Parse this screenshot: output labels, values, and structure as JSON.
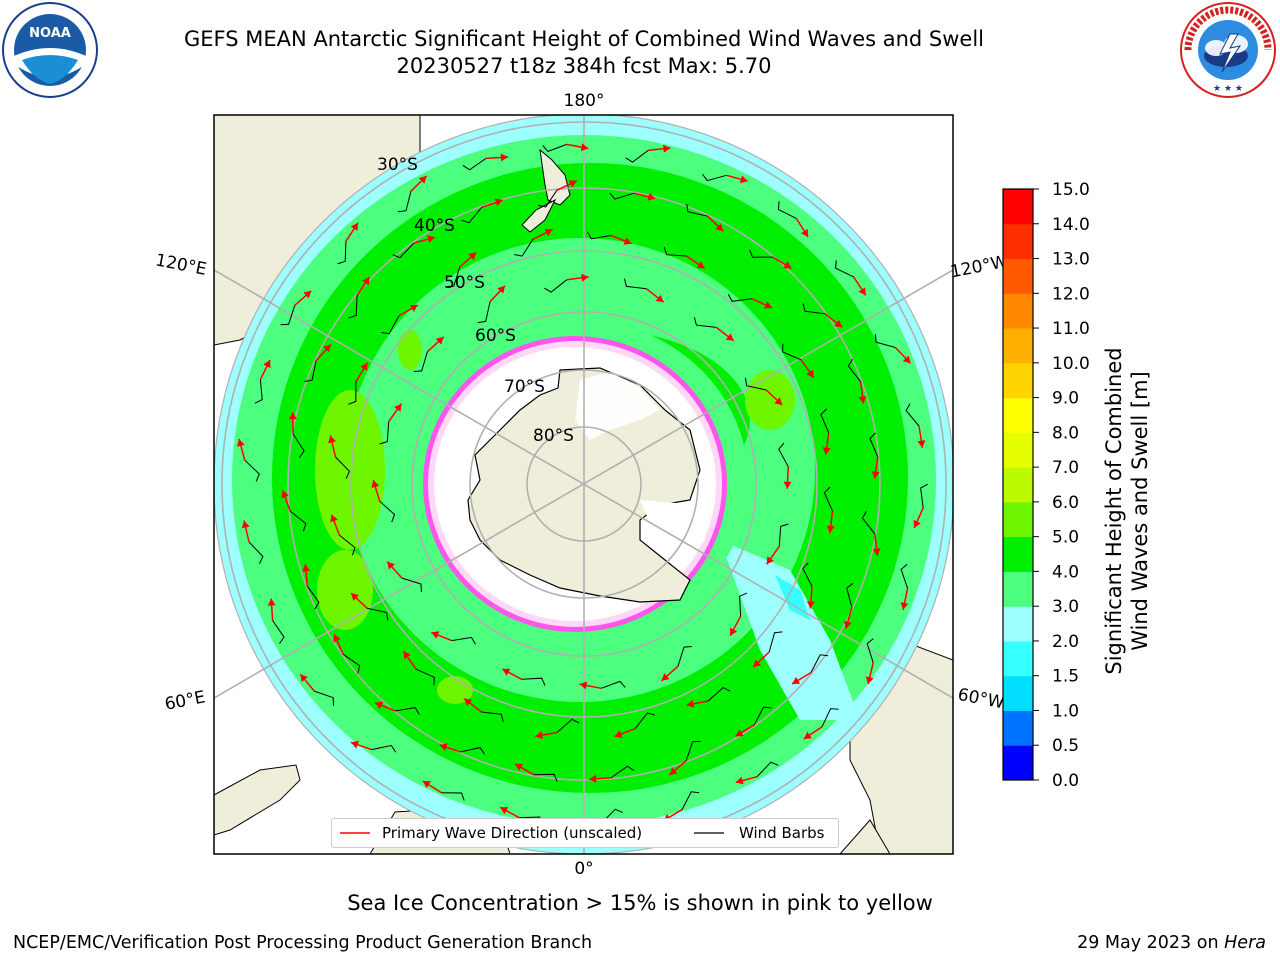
{
  "header": {
    "title_line1": "GEFS MEAN Antarctic Significant Height of Combined Wind Waves and Swell",
    "title_line2": "20230527 t18z 384h fcst   Max: 5.70"
  },
  "logos": {
    "left": "NOAA",
    "left_ring_text": "NATIONAL OCEANIC AND ATMOSPHERIC ADMINISTRATION · U.S. DEPARTMENT OF COMMERCE",
    "right_ring_text": "NATIONAL WEATHER SERVICE"
  },
  "map": {
    "longitude_labels": {
      "top": "180°",
      "bottom": "0°",
      "left_upper": "120°E",
      "left_lower": "60°E",
      "right_upper": "120°W",
      "right_lower": "60°W"
    },
    "latitude_labels": [
      "30°S",
      "40°S",
      "50°S",
      "60°S",
      "70°S",
      "80°S"
    ],
    "legend": {
      "primary_wave": "Primary Wave Direction (unscaled)",
      "wind_barbs": "Wind Barbs"
    }
  },
  "colorbar": {
    "label_line1": "Significant Height of Combined",
    "label_line2": "Wind Waves and Swell [m]",
    "ticks": [
      "0.0",
      "0.5",
      "1.0",
      "1.5",
      "2.0",
      "3.0",
      "4.0",
      "5.0",
      "6.0",
      "7.0",
      "8.0",
      "9.0",
      "10.0",
      "11.0",
      "12.0",
      "13.0",
      "14.0",
      "15.0"
    ],
    "colors": [
      "#0000ff",
      "#0073ff",
      "#00ddff",
      "#36ffff",
      "#9effff",
      "#4dff7f",
      "#00ee00",
      "#6ef500",
      "#bbfa00",
      "#e6ff00",
      "#ffff00",
      "#ffd400",
      "#ffb000",
      "#ff8800",
      "#ff5a00",
      "#ff2e00",
      "#ff0000"
    ]
  },
  "notes": {
    "sea_ice": "Sea Ice Concentration > 15% is shown in pink to yellow"
  },
  "footer": {
    "left": "NCEP/EMC/Verification Post Processing Product Generation Branch",
    "right_date": "29 May 2023 on",
    "right_host": "Hera"
  }
}
